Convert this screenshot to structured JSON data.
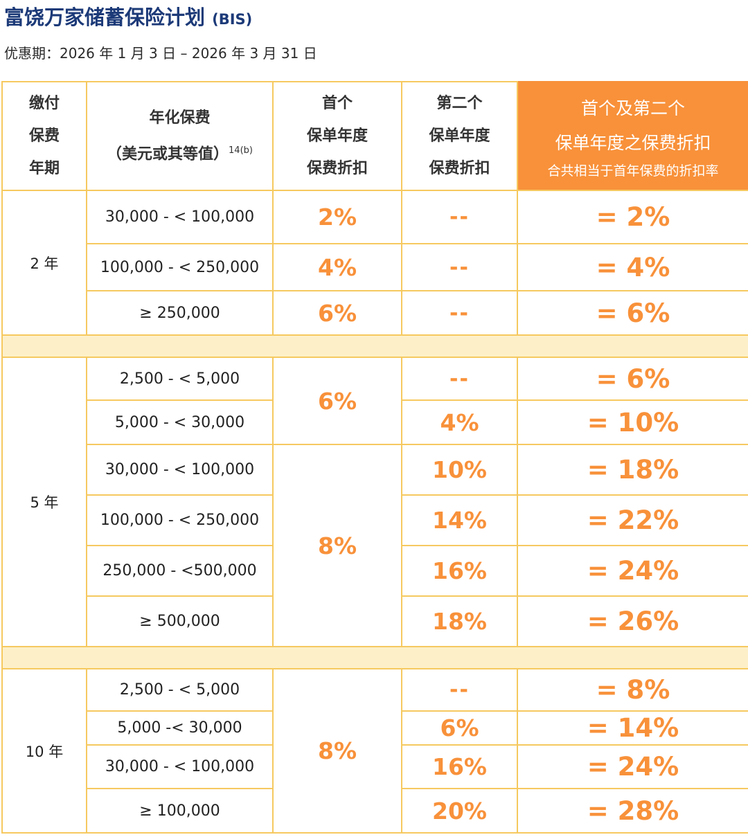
{
  "title": {
    "main": "富饶万家储蓄保险计划",
    "code": "(BIS)"
  },
  "subtitle": "优惠期：2026 年 1 月 3 日 – 2026 年 3 月 31 日",
  "colors": {
    "accent": "#f8913a",
    "title": "#1c3a78",
    "header_bg": "#fdf0c8",
    "border": "#f6c95f"
  },
  "table": {
    "headers": {
      "term": [
        "缴付",
        "保费",
        "年期"
      ],
      "premium": [
        "年化保费",
        "（美元或其等值）"
      ],
      "premium_note": "14(b)",
      "first_year": [
        "首个",
        "保单年度",
        "保费折扣"
      ],
      "second_year": [
        "第二个",
        "保单年度",
        "保费折扣"
      ],
      "total": [
        "首个及第二个",
        "保单年度之保费折扣",
        "合共相当于首年保费的折扣率"
      ]
    },
    "groups": [
      {
        "term": "2  年",
        "rows": [
          {
            "premium": "30,000 - < 100,000",
            "first": "2%",
            "second": "--",
            "total": "= 2%"
          },
          {
            "premium": "100,000 - < 250,000",
            "first": "4%",
            "second": "--",
            "total": "= 4%"
          },
          {
            "premium": "≥ 250,000",
            "first": "6%",
            "second": "--",
            "total": "= 6%"
          }
        ]
      },
      {
        "term": "5  年",
        "first_a": "6%",
        "first_b": "8%",
        "rows": [
          {
            "premium": "2,500 - < 5,000",
            "second": "--",
            "total": "= 6%"
          },
          {
            "premium": "5,000 - < 30,000",
            "second": "4%",
            "total": "= 10%"
          },
          {
            "premium": "30,000 - < 100,000",
            "second": "10%",
            "total": "= 18%"
          },
          {
            "premium": "100,000 - < 250,000",
            "second": "14%",
            "total": "= 22%"
          },
          {
            "premium": "250,000 - <500,000",
            "second": "16%",
            "total": "= 24%"
          },
          {
            "premium": "≥ 500,000",
            "second": "18%",
            "total": "= 26%"
          }
        ]
      },
      {
        "term": "10  年",
        "first": "8%",
        "rows": [
          {
            "premium": "2,500 - < 5,000",
            "second": "--",
            "total": "= 8%"
          },
          {
            "premium": "5,000 -< 30,000",
            "second": "6%",
            "total": "= 14%"
          },
          {
            "premium": "30,000 - < 100,000",
            "second": "16%",
            "total": "= 24%"
          },
          {
            "premium": "≥ 100,000",
            "second": "20%",
            "total": "= 28%"
          }
        ]
      }
    ]
  }
}
